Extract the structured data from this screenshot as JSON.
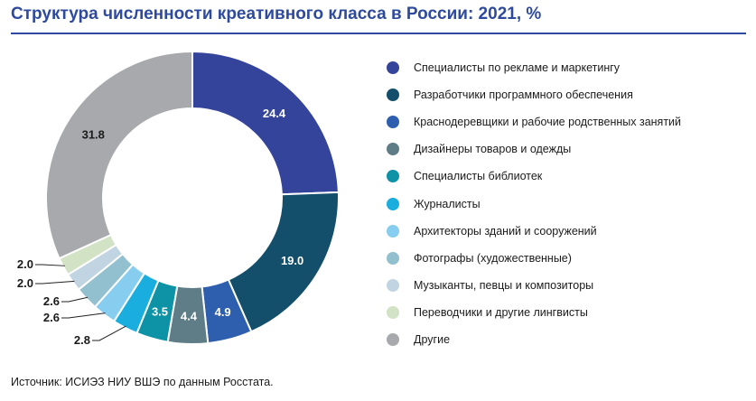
{
  "header": {
    "title": "Структура численности креативного класса в России: 2021, %"
  },
  "footer": {
    "source": "Источник: ИСИЭЗ НИУ ВШЭ по данным Росстата."
  },
  "chart_data": {
    "type": "pie",
    "variant": "donut",
    "title": "Структура численности креативного класса в России: 2021, %",
    "legend_position": "right",
    "slices": [
      {
        "label": "Специалисты по рекламе и маркетингу",
        "value": 24.4,
        "value_label": "24.4",
        "color": "#35449b"
      },
      {
        "label": "Разработчики программного обеспечения",
        "value": 19.0,
        "value_label": "19.0",
        "color": "#134f6b"
      },
      {
        "label": "Краснодеревщики и рабочие родственных занятий",
        "value": 4.9,
        "value_label": "4.9",
        "color": "#2d5fae"
      },
      {
        "label": "Дизайнеры товаров и одежды",
        "value": 4.4,
        "value_label": "4.4",
        "color": "#5f7d86"
      },
      {
        "label": "Специалисты библиотек",
        "value": 3.5,
        "value_label": "3.5",
        "color": "#0d92a6"
      },
      {
        "label": "Журналисты",
        "value": 2.8,
        "value_label": "2.8",
        "color": "#1aaedf"
      },
      {
        "label": "Архитекторы зданий и сооружений",
        "value": 2.6,
        "value_label": "2.6",
        "color": "#86cdf0"
      },
      {
        "label": "Фотографы (художественные)",
        "value": 2.6,
        "value_label": "2.6",
        "color": "#93c0cf"
      },
      {
        "label": "Музыканты, певцы и композиторы",
        "value": 2.0,
        "value_label": "2.0",
        "color": "#c1d4e2"
      },
      {
        "label": "Переводчики и другие лингвисты",
        "value": 2.0,
        "value_label": "2.0",
        "color": "#d2e2c5"
      },
      {
        "label": "Другие",
        "value": 31.8,
        "value_label": "31.8",
        "color": "#a7a9ad"
      }
    ]
  }
}
